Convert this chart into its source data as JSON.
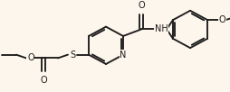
{
  "bg_color": "#fdf6ec",
  "lc": "#1c1c1c",
  "lw": 1.35,
  "fs": 7.0,
  "figsize": [
    2.55,
    1.02
  ],
  "dpi": 100,
  "xlim": [
    0,
    255
  ],
  "ylim": [
    0,
    102
  ]
}
